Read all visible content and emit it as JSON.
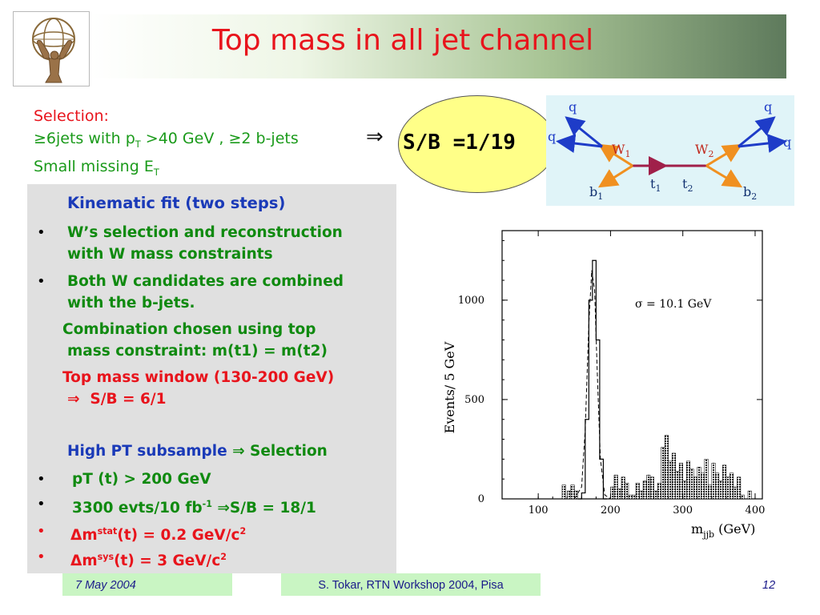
{
  "title": "Top mass in all jet channel",
  "selection": {
    "heading": "Selection:",
    "line1_pre": "≥6jets with p",
    "line1_sub": "T",
    "line1_post": " >40 GeV , ≥2 b-jets",
    "arrow": "⇒",
    "line2_pre": "Small missing E",
    "line2_sub": "T"
  },
  "sb_ratio": "S/B =1/19",
  "feynman": {
    "quarks": [
      "q",
      "q",
      "q",
      "q"
    ],
    "w1": "W",
    "w1_sub": "1",
    "w2": "W",
    "w2_sub": "2",
    "t1": "t",
    "t1_sub": "1",
    "t2": "t",
    "t2_sub": "2",
    "b1": "b",
    "b1_sub": "1",
    "b2": "b",
    "b2_sub": "2"
  },
  "kinematic": {
    "heading": "Kinematic fit (two steps)",
    "bullet1_l1": "W’s selection and reconstruction",
    "bullet1_l2": "with W mass constraints",
    "bullet2_l1": "Both W candidates are combined",
    "bullet2_l2": "with the b-jets.",
    "comb_l1": "Combination chosen using top",
    "comb_l2": "mass constraint: m(t1) = m(t2)",
    "window_l1": "Top mass window (130-200 GeV)",
    "window_arrow": "⇒",
    "window_l2": "S/B = 6/1",
    "highpt_a": "High PT",
    "highpt_b": " subsample ",
    "highpt_arrow": "⇒",
    "highpt_c": " Selection",
    "bullet3": "pT (t) > 200 GeV",
    "bullet4_pre": "3300 evts/10 fb",
    "bullet4_sup": "-1",
    "bullet4_arrow": "⇒",
    "bullet4_post": "S/B = 18/1",
    "bullet5_delta": "Δ",
    "bullet5_m": "m",
    "bullet5_sup": "stat",
    "bullet5_post": "(t) = 0.2 GeV/c",
    "bullet5_sup2": "2",
    "bullet6_delta": "Δ",
    "bullet6_m": "m",
    "bullet6_sup": "sys",
    "bullet6_post": "(t)  = 3 GeV/c",
    "bullet6_sup2": "2",
    "bullet_char": "•"
  },
  "chart_data": {
    "type": "histogram",
    "ylabel": "Events/ 5 GeV",
    "xlabel_main": "m",
    "xlabel_sub": "jjb",
    "xlabel_unit": " (GeV)",
    "annotation": "σ = 10.1 GeV",
    "xlim": [
      50,
      410
    ],
    "ylim": [
      0,
      1350
    ],
    "x_ticks": [
      100,
      200,
      300,
      400
    ],
    "y_ticks": [
      0,
      500,
      1000
    ],
    "peak_bins": [
      [
        155,
        0
      ],
      [
        160,
        30
      ],
      [
        165,
        400
      ],
      [
        170,
        1000
      ],
      [
        175,
        1200
      ],
      [
        180,
        800
      ],
      [
        185,
        200
      ],
      [
        190,
        0
      ]
    ],
    "fit_curve": [
      [
        150,
        0
      ],
      [
        160,
        60
      ],
      [
        165,
        350
      ],
      [
        170,
        880
      ],
      [
        174,
        1150
      ],
      [
        178,
        1050
      ],
      [
        182,
        600
      ],
      [
        186,
        200
      ],
      [
        192,
        20
      ],
      [
        200,
        0
      ]
    ],
    "bg_bins": [
      [
        133,
        70
      ],
      [
        140,
        40
      ],
      [
        145,
        70
      ],
      [
        150,
        40
      ],
      [
        200,
        60
      ],
      [
        205,
        120
      ],
      [
        210,
        50
      ],
      [
        215,
        110
      ],
      [
        220,
        80
      ],
      [
        225,
        20
      ],
      [
        230,
        20
      ],
      [
        235,
        80
      ],
      [
        240,
        40
      ],
      [
        245,
        90
      ],
      [
        250,
        120
      ],
      [
        255,
        110
      ],
      [
        260,
        40
      ],
      [
        265,
        80
      ],
      [
        270,
        260
      ],
      [
        275,
        320
      ],
      [
        280,
        190
      ],
      [
        285,
        230
      ],
      [
        290,
        140
      ],
      [
        295,
        180
      ],
      [
        300,
        90
      ],
      [
        305,
        190
      ],
      [
        310,
        150
      ],
      [
        315,
        110
      ],
      [
        320,
        160
      ],
      [
        325,
        130
      ],
      [
        330,
        200
      ],
      [
        335,
        70
      ],
      [
        340,
        180
      ],
      [
        345,
        130
      ],
      [
        350,
        90
      ],
      [
        355,
        170
      ],
      [
        360,
        110
      ],
      [
        365,
        130
      ],
      [
        370,
        60
      ],
      [
        375,
        110
      ],
      [
        380,
        20
      ],
      [
        390,
        40
      ]
    ]
  },
  "footer": {
    "date": "7 May 2004",
    "center": "S. Tokar, RTN Workshop 2004, Pisa",
    "page": "12"
  },
  "colors": {
    "title": "#e8141c",
    "green_text": "#108a10",
    "blue_text": "#1a3ab8",
    "red_text": "#e8141c",
    "box_bg": "#e0e0e0",
    "ellipse": "#ffff88",
    "footer_bg": "#c9f5c3"
  }
}
